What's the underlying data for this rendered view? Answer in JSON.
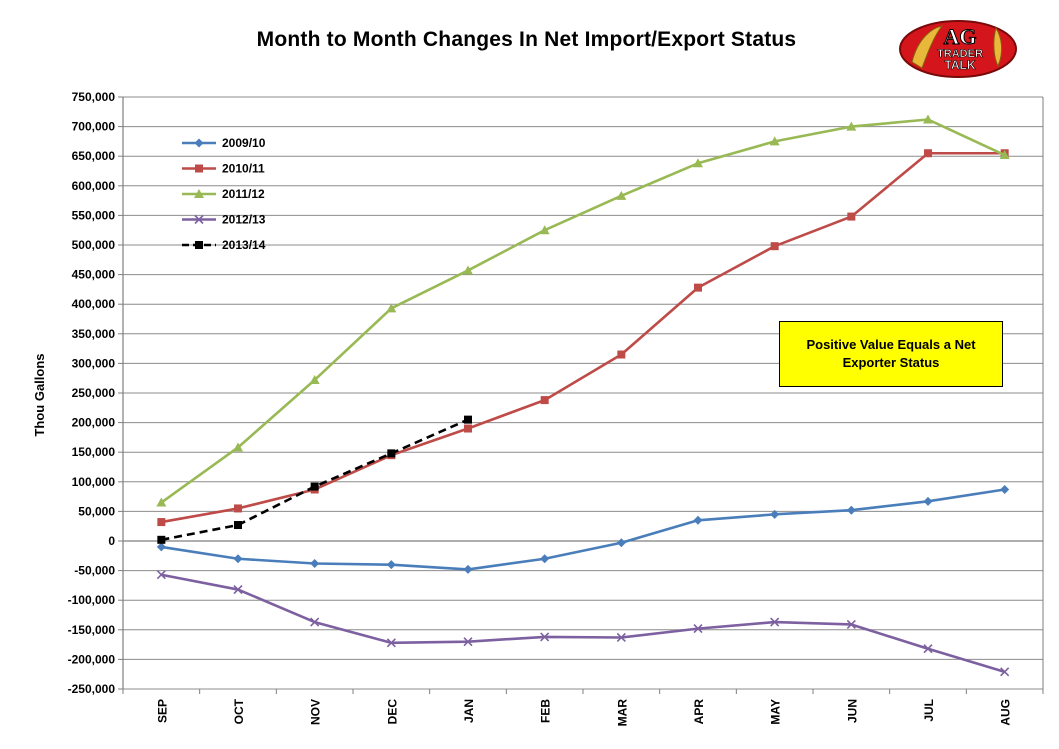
{
  "chart_data": {
    "type": "line",
    "title": "Month to Month Changes In Net Import/Export Status",
    "ylabel": "Thou Gallons",
    "xlabel": "",
    "ylim": [
      -250000,
      750000
    ],
    "ytick_step": 50000,
    "ytick_labels": [
      "750,000",
      "700,000",
      "650,000",
      "600,000",
      "550,000",
      "500,000",
      "450,000",
      "400,000",
      "350,000",
      "300,000",
      "250,000",
      "200,000",
      "150,000",
      "100,000",
      "50,000",
      "0",
      "-50,000",
      "-100,000",
      "-150,000",
      "-200,000",
      "-250,000"
    ],
    "categories": [
      "SEP",
      "OCT",
      "NOV",
      "DEC",
      "JAN",
      "FEB",
      "MAR",
      "APR",
      "MAY",
      "JUN",
      "JUL",
      "AUG"
    ],
    "grid": "horizontal",
    "legend_position": "top-left",
    "series": [
      {
        "name": "2009/10",
        "color": "#4a7ebb",
        "marker": "diamond",
        "dash": false,
        "values": [
          -10000,
          -30000,
          -38000,
          -40000,
          -48000,
          -30000,
          -3000,
          35000,
          45000,
          52000,
          67000,
          87000
        ]
      },
      {
        "name": "2010/11",
        "color": "#be4b48",
        "marker": "square",
        "dash": false,
        "values": [
          32000,
          55000,
          87000,
          145000,
          190000,
          238000,
          315000,
          428000,
          498000,
          548000,
          655000,
          655000
        ]
      },
      {
        "name": "2011/12",
        "color": "#98b954",
        "marker": "triangle",
        "dash": false,
        "values": [
          65000,
          158000,
          272000,
          393000,
          457000,
          525000,
          583000,
          638000,
          675000,
          700000,
          712000,
          652000
        ]
      },
      {
        "name": "2012/13",
        "color": "#7d60a0",
        "marker": "x",
        "dash": false,
        "values": [
          -57000,
          -82000,
          -137000,
          -172000,
          -170000,
          -162000,
          -163000,
          -148000,
          -137000,
          -141000,
          -182000,
          -221000
        ]
      },
      {
        "name": "2013/14",
        "color": "#000000",
        "marker": "square",
        "dash": true,
        "values": [
          2000,
          27000,
          92000,
          148000,
          205000,
          null,
          null,
          null,
          null,
          null,
          null,
          null
        ]
      }
    ],
    "annotation": "Positive Value Equals a Net Exporter Status"
  },
  "logo": {
    "line1": "AG",
    "line2": "TRADER",
    "line3": "TALK",
    "colors": {
      "red": "#d4161c",
      "gold": "#e8b83a"
    }
  }
}
